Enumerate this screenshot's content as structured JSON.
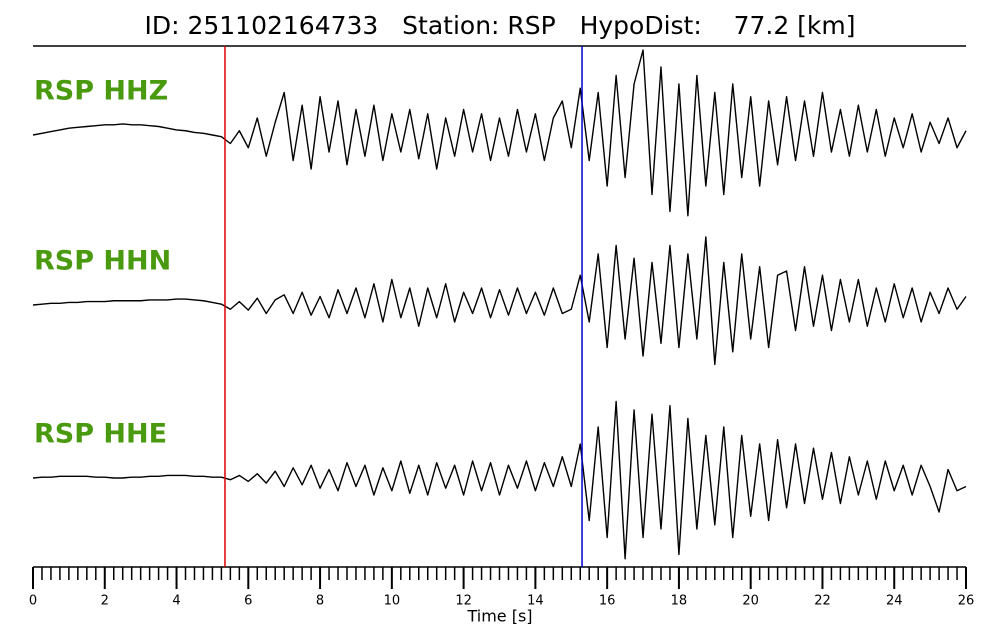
{
  "chart_data": {
    "type": "seismogram",
    "title": "ID: 251102164733   Station: RSP   HypoDist:    77.2 [km]",
    "xlabel": "Time [s]",
    "xlim": [
      0,
      26
    ],
    "xticks": [
      0,
      2,
      4,
      6,
      8,
      10,
      12,
      14,
      16,
      18,
      20,
      22,
      24,
      26
    ],
    "xminorticks": [
      0,
      0.25,
      0.5,
      0.75,
      1,
      1.25,
      1.5,
      1.75,
      2,
      2.25,
      2.5,
      2.75,
      3,
      3.25,
      3.5,
      3.75,
      4,
      4.25,
      4.5,
      4.75,
      5,
      5.25,
      5.5,
      5.75,
      6,
      6.25,
      6.5,
      6.75,
      7,
      7.25,
      7.5,
      7.75,
      8,
      8.25,
      8.5,
      8.75,
      9,
      9.25,
      9.5,
      9.75,
      10,
      10.25,
      10.5,
      10.75,
      11,
      11.25,
      11.5,
      11.75,
      12,
      12.25,
      12.5,
      12.75,
      13,
      13.25,
      13.5,
      13.75,
      14,
      14.25,
      14.5,
      14.75,
      15,
      15.25,
      15.5,
      15.75,
      16,
      16.25,
      16.5,
      16.75,
      17,
      17.25,
      17.5,
      17.75,
      18,
      18.25,
      18.5,
      18.75,
      19,
      19.25,
      19.5,
      19.75,
      20,
      20.25,
      20.5,
      20.75,
      21,
      21.25,
      21.5,
      21.75,
      22,
      22.25,
      22.5,
      22.75,
      23,
      23.25,
      23.5,
      23.75,
      24,
      24.25,
      24.5,
      24.75,
      25,
      25.25,
      25.5,
      25.75,
      26
    ],
    "vlines": [
      {
        "x": 5.35,
        "color": "#e00000"
      },
      {
        "x": 15.3,
        "color": "#0000cc"
      }
    ],
    "x": [
      0,
      0.25,
      0.5,
      0.75,
      1,
      1.25,
      1.5,
      1.75,
      2,
      2.25,
      2.5,
      2.75,
      3,
      3.25,
      3.5,
      3.75,
      4,
      4.25,
      4.5,
      4.75,
      5,
      5.25,
      5.5,
      5.75,
      6,
      6.25,
      6.5,
      6.75,
      7,
      7.25,
      7.5,
      7.75,
      8,
      8.25,
      8.5,
      8.75,
      9,
      9.25,
      9.5,
      9.75,
      10,
      10.25,
      10.5,
      10.75,
      11,
      11.25,
      11.5,
      11.75,
      12,
      12.25,
      12.5,
      12.75,
      13,
      13.25,
      13.5,
      13.75,
      14,
      14.25,
      14.5,
      14.75,
      15,
      15.25,
      15.5,
      15.75,
      16,
      16.25,
      16.5,
      16.75,
      17,
      17.25,
      17.5,
      17.75,
      18,
      18.25,
      18.5,
      18.75,
      19,
      19.25,
      19.5,
      19.75,
      20,
      20.25,
      20.5,
      20.75,
      21,
      21.25,
      21.5,
      21.75,
      22,
      22.25,
      22.5,
      22.75,
      23,
      23.25,
      23.5,
      23.75,
      24,
      24.25,
      24.5,
      24.75,
      25,
      25.25,
      25.5,
      25.75,
      26
    ],
    "series": [
      {
        "name": "RSP HHZ",
        "color": "#4a9a10",
        "line_color": "#000000",
        "values": [
          0,
          0.02,
          0.04,
          0.06,
          0.08,
          0.09,
          0.1,
          0.11,
          0.12,
          0.12,
          0.13,
          0.12,
          0.12,
          0.11,
          0.1,
          0.08,
          0.06,
          0.05,
          0.03,
          0.02,
          0,
          -0.02,
          -0.1,
          0.05,
          -0.15,
          0.2,
          -0.25,
          0.15,
          0.5,
          -0.3,
          0.35,
          -0.4,
          0.45,
          -0.2,
          0.4,
          -0.35,
          0.3,
          -0.25,
          0.35,
          -0.3,
          0.25,
          -0.2,
          0.3,
          -0.28,
          0.25,
          -0.4,
          0.2,
          -0.25,
          0.3,
          -0.2,
          0.25,
          -0.3,
          0.2,
          -0.25,
          0.3,
          -0.2,
          0.25,
          -0.3,
          0.2,
          0.4,
          -0.15,
          0.55,
          -0.3,
          0.5,
          -0.6,
          0.7,
          -0.5,
          0.6,
          1,
          -0.7,
          0.8,
          -0.9,
          0.6,
          -0.95,
          0.7,
          -0.6,
          0.5,
          -0.7,
          0.6,
          -0.5,
          0.45,
          -0.6,
          0.4,
          -0.35,
          0.45,
          -0.3,
          0.4,
          -0.25,
          0.5,
          -0.2,
          0.3,
          -0.25,
          0.35,
          -0.2,
          0.3,
          -0.25,
          0.2,
          -0.15,
          0.25,
          -0.2,
          0.15,
          -0.1,
          0.2,
          -0.15,
          0.05
        ]
      },
      {
        "name": "RSP HHN",
        "color": "#4a9a10",
        "line_color": "#000000",
        "values": [
          0,
          0.01,
          0.02,
          0.02,
          0.03,
          0.03,
          0.04,
          0.04,
          0.04,
          0.05,
          0.05,
          0.05,
          0.05,
          0.06,
          0.06,
          0.06,
          0.07,
          0.07,
          0.06,
          0.05,
          0.03,
          0.01,
          -0.05,
          0.04,
          -0.06,
          0.08,
          -0.1,
          0.06,
          0.12,
          -0.1,
          0.15,
          -0.12,
          0.1,
          -0.15,
          0.18,
          -0.1,
          0.2,
          -0.15,
          0.25,
          -0.2,
          0.3,
          -0.15,
          0.2,
          -0.25,
          0.2,
          -0.15,
          0.25,
          -0.2,
          0.15,
          -0.1,
          0.2,
          -0.15,
          0.18,
          -0.12,
          0.2,
          -0.1,
          0.15,
          -0.12,
          0.2,
          -0.1,
          -0.05,
          0.35,
          -0.2,
          0.6,
          -0.5,
          0.7,
          -0.4,
          0.55,
          -0.6,
          0.5,
          -0.45,
          0.7,
          -0.5,
          0.6,
          -0.4,
          0.8,
          -0.7,
          0.5,
          -0.55,
          0.6,
          -0.4,
          0.45,
          -0.5,
          0.35,
          0.4,
          -0.3,
          0.45,
          -0.25,
          0.35,
          -0.3,
          0.3,
          -0.2,
          0.3,
          -0.25,
          0.2,
          -0.2,
          0.25,
          -0.15,
          0.2,
          -0.2,
          0.15,
          -0.1,
          0.2,
          -0.05,
          0.1
        ]
      },
      {
        "name": "RSP HHE",
        "color": "#4a9a10",
        "line_color": "#000000",
        "values": [
          0,
          0.01,
          0.01,
          0.02,
          0.02,
          0.02,
          0.02,
          0.01,
          0.01,
          0,
          0,
          0.01,
          0.01,
          0.02,
          0.02,
          0.03,
          0.03,
          0.03,
          0.02,
          0.02,
          0.01,
          0.01,
          -0.02,
          0.03,
          -0.04,
          0.05,
          -0.06,
          0.08,
          -0.1,
          0.12,
          -0.08,
          0.15,
          -0.12,
          0.1,
          -0.15,
          0.18,
          -0.1,
          0.15,
          -0.2,
          0.12,
          -0.15,
          0.2,
          -0.18,
          0.15,
          -0.2,
          0.18,
          -0.12,
          0.15,
          -0.2,
          0.2,
          -0.15,
          0.18,
          -0.2,
          0.15,
          -0.12,
          0.2,
          -0.15,
          0.18,
          -0.1,
          0.25,
          -0.1,
          0.4,
          -0.5,
          0.6,
          -0.7,
          0.9,
          -0.95,
          0.8,
          -0.7,
          0.75,
          -0.6,
          0.85,
          -0.9,
          0.7,
          -0.6,
          0.5,
          -0.55,
          0.6,
          -0.7,
          0.5,
          -0.45,
          0.4,
          -0.5,
          0.45,
          -0.35,
          0.4,
          -0.3,
          0.35,
          -0.25,
          0.3,
          -0.3,
          0.25,
          -0.2,
          0.2,
          -0.25,
          0.2,
          -0.15,
          0.15,
          -0.2,
          0.15,
          -0.1,
          -0.4,
          0.1,
          -0.15,
          -0.1
        ]
      }
    ]
  }
}
